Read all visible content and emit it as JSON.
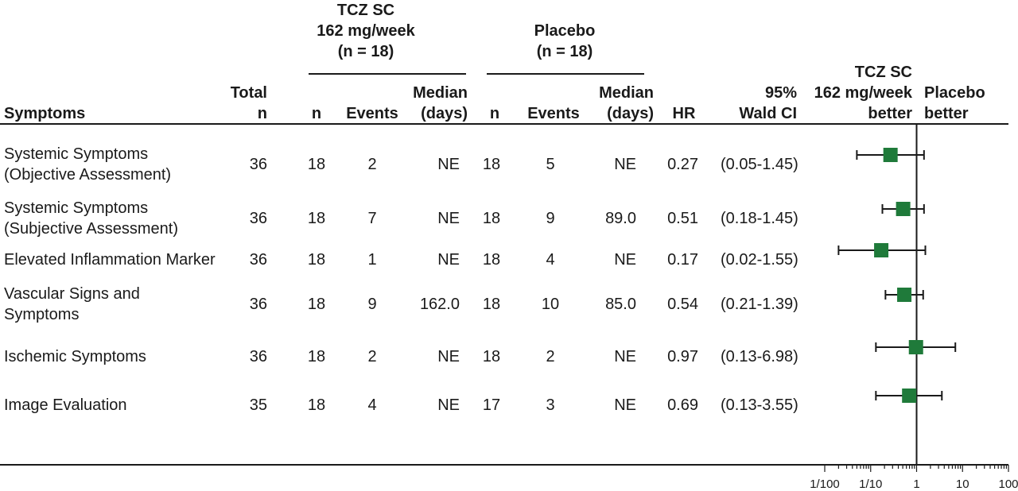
{
  "header": {
    "tcz_group": [
      "TCZ SC",
      "162 mg/week",
      "(n = 18)"
    ],
    "placebo_group": [
      "Placebo",
      "(n = 18)"
    ],
    "symptoms": "Symptoms",
    "total_n": [
      "Total",
      "n"
    ],
    "n": "n",
    "events": "Events",
    "median": [
      "Median",
      "(days)"
    ],
    "hr": "HR",
    "ci": [
      "95%",
      "Wald CI"
    ],
    "tcz_better": [
      "TCZ SC",
      "162 mg/week",
      "better"
    ],
    "placebo_better": [
      "Placebo",
      "better"
    ]
  },
  "rows": [
    {
      "symptom": [
        "Systemic Symptoms",
        "(Objective Assessment)"
      ],
      "total_n": "36",
      "tcz_n": "18",
      "tcz_events": "2",
      "tcz_median": "NE",
      "pbo_n": "18",
      "pbo_events": "5",
      "pbo_median": "NE",
      "hr": "0.27",
      "ci": "(0.05-1.45)"
    },
    {
      "symptom": [
        "Systemic Symptoms",
        "(Subjective Assessment)"
      ],
      "total_n": "36",
      "tcz_n": "18",
      "tcz_events": "7",
      "tcz_median": "NE",
      "pbo_n": "18",
      "pbo_events": "9",
      "pbo_median": "89.0",
      "hr": "0.51",
      "ci": "(0.18-1.45)"
    },
    {
      "symptom": [
        "Elevated Inflammation Marker"
      ],
      "total_n": "36",
      "tcz_n": "18",
      "tcz_events": "1",
      "tcz_median": "NE",
      "pbo_n": "18",
      "pbo_events": "4",
      "pbo_median": "NE",
      "hr": "0.17",
      "ci": "(0.02-1.55)"
    },
    {
      "symptom": [
        "Vascular Signs and",
        "Symptoms"
      ],
      "total_n": "36",
      "tcz_n": "18",
      "tcz_events": "9",
      "tcz_median": "162.0",
      "pbo_n": "18",
      "pbo_events": "10",
      "pbo_median": "85.0",
      "hr": "0.54",
      "ci": "(0.21-1.39)"
    },
    {
      "symptom": [
        "Ischemic Symptoms"
      ],
      "total_n": "36",
      "tcz_n": "18",
      "tcz_events": "2",
      "tcz_median": "NE",
      "pbo_n": "18",
      "pbo_events": "2",
      "pbo_median": "NE",
      "hr": "0.97",
      "ci": "(0.13-6.98)"
    },
    {
      "symptom": [
        "Image Evaluation"
      ],
      "total_n": "35",
      "tcz_n": "18",
      "tcz_events": "4",
      "tcz_median": "NE",
      "pbo_n": "17",
      "pbo_events": "3",
      "pbo_median": "NE",
      "hr": "0.69",
      "ci": "(0.13-3.55)"
    }
  ],
  "chart_data": {
    "type": "scatter",
    "subtype": "forest",
    "x_scale": "log",
    "xlim": [
      0.01,
      100
    ],
    "x_ticks": [
      0.01,
      0.1,
      1,
      10,
      100
    ],
    "x_tick_labels": [
      "1/100",
      "1/10",
      "1",
      "10",
      "100"
    ],
    "reference_line": 1,
    "marker_color": "#1f7a3a",
    "categories": [
      "Systemic Symptoms (Objective Assessment)",
      "Systemic Symptoms (Subjective Assessment)",
      "Elevated Inflammation Marker",
      "Vascular Signs and Symptoms",
      "Ischemic Symptoms",
      "Image Evaluation"
    ],
    "hr": [
      0.27,
      0.51,
      0.17,
      0.54,
      0.97,
      0.69
    ],
    "ci_lower": [
      0.05,
      0.18,
      0.02,
      0.21,
      0.13,
      0.13
    ],
    "ci_upper": [
      1.45,
      1.45,
      1.55,
      1.39,
      6.98,
      3.55
    ]
  }
}
